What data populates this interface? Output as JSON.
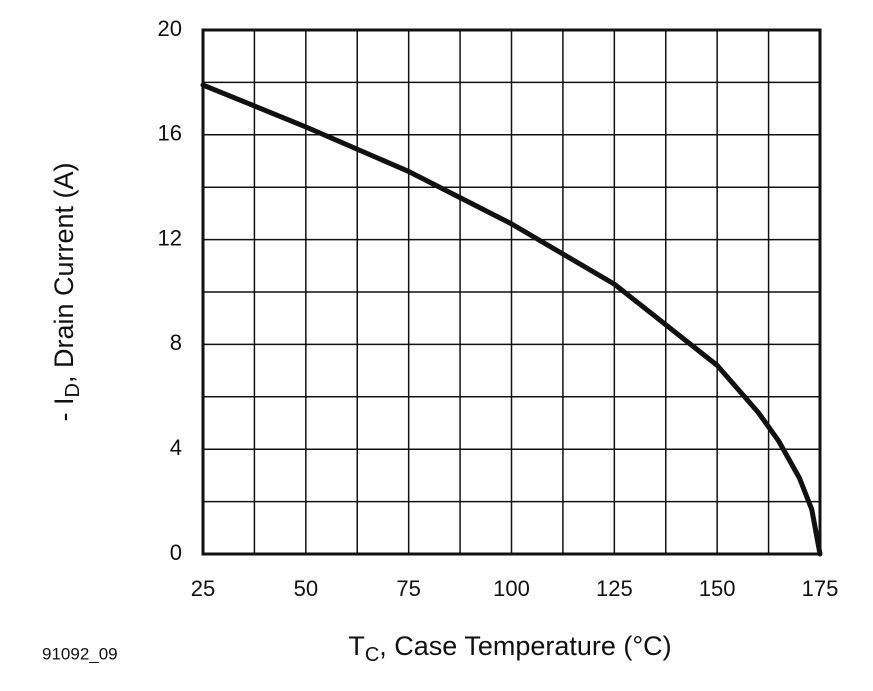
{
  "chart_data": {
    "type": "line",
    "figure_id": "91092_09",
    "x_label": {
      "main": "T",
      "sub": "C",
      "rest": ", Case Temperature (°C)"
    },
    "y_label": {
      "main": "- I",
      "sub": "D",
      "rest": ", Drain Current (A)"
    },
    "x": [
      25,
      50,
      75,
      100,
      125,
      150,
      160,
      165,
      170,
      173,
      175
    ],
    "series": [
      {
        "color": "#111111",
        "values": [
          17.9,
          16.3,
          14.6,
          12.6,
          10.3,
          7.2,
          5.4,
          4.3,
          2.9,
          1.7,
          0
        ]
      }
    ],
    "xlim": [
      25,
      175
    ],
    "xticks": [
      25,
      50,
      75,
      100,
      125,
      150,
      175
    ],
    "ylim": [
      0,
      20
    ],
    "yticks": [
      0,
      4,
      8,
      12,
      16,
      20
    ],
    "grid": true,
    "minor_grid": true
  }
}
